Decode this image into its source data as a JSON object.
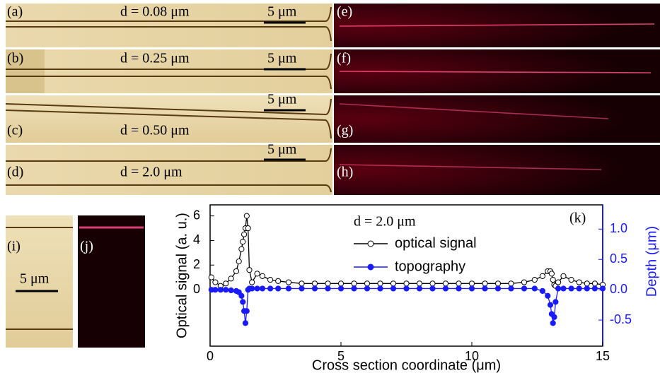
{
  "panels": [
    {
      "label": "(a)",
      "annotation": "d = 0.08 μm",
      "scale_bar": "5 μm"
    },
    {
      "label": "(b)",
      "annotation": "d = 0.25 μm",
      "scale_bar": "5 μm"
    },
    {
      "label": "(c)",
      "annotation": "d = 0.50 μm",
      "scale_bar": "5 μm"
    },
    {
      "label": "(d)",
      "annotation": "d = 2.0 μm",
      "scale_bar": "5 μm"
    },
    {
      "label": "(e)"
    },
    {
      "label": "(f)"
    },
    {
      "label": "(g)"
    },
    {
      "label": "(h)"
    },
    {
      "label": "(i)",
      "scale_bar": "5 μm"
    },
    {
      "label": "(j)"
    }
  ],
  "chart_data": {
    "type": "line",
    "panel_label": "(k)",
    "annotation": "d = 2.0 μm",
    "x_label": "Cross section coordinate (μm)",
    "y_label": "Optical signal (a. u.)",
    "y2_label": "Depth (μm)",
    "xlim": [
      0,
      15
    ],
    "xticks": [
      0,
      5,
      10,
      15
    ],
    "ylim": [
      -4.6,
      6.9
    ],
    "yticks": [
      0,
      2,
      4,
      6
    ],
    "y2lim": [
      -0.93,
      1.4
    ],
    "y2ticks": [
      {
        "value": 1.0,
        "label": "1.0"
      },
      0.5,
      {
        "value": 0.0,
        "label": "0.0"
      },
      -0.5
    ],
    "legend": "top-center",
    "x": [
      0.05,
      0.2,
      0.4,
      0.6,
      0.8,
      1.0,
      1.1,
      1.2,
      1.25,
      1.3,
      1.35,
      1.4,
      1.45,
      1.5,
      1.6,
      1.8,
      2.0,
      2.3,
      2.6,
      3,
      3.5,
      4,
      4.5,
      5,
      5.5,
      6,
      6.5,
      7,
      7.5,
      8,
      8.5,
      9,
      9.5,
      10,
      10.5,
      11,
      11.5,
      12,
      12.4,
      12.7,
      12.9,
      13.0,
      13.05,
      13.1,
      13.15,
      13.2,
      13.3,
      13.5,
      13.8,
      14.1,
      14.4,
      14.7,
      15.0
    ],
    "series": [
      {
        "name": "optical signal",
        "color": "#000000",
        "marker": "open",
        "values": [
          1.0,
          0.6,
          0.3,
          0.5,
          0.9,
          1.5,
          2.3,
          3.3,
          3.9,
          4.5,
          5.0,
          6.0,
          5.0,
          1.6,
          0.6,
          1.3,
          1.1,
          0.8,
          0.7,
          0.6,
          0.5,
          0.5,
          0.5,
          0.5,
          0.5,
          0.5,
          0.5,
          0.5,
          0.5,
          0.5,
          0.5,
          0.5,
          0.5,
          0.5,
          0.5,
          0.5,
          0.5,
          0.6,
          0.8,
          1.1,
          1.5,
          1.5,
          1.3,
          0.8,
          0.4,
          0.3,
          0.6,
          1.1,
          0.8,
          0.6,
          0.5,
          0.5,
          0.4
        ]
      },
      {
        "name": "topography",
        "color": "#1a1aff",
        "marker": "filled",
        "axis": "y2",
        "values": [
          0,
          0,
          0,
          0,
          -0.01,
          -0.02,
          -0.04,
          -0.1,
          -0.2,
          -0.35,
          -0.55,
          -0.35,
          0,
          0.02,
          0.02,
          0.02,
          0.02,
          0.02,
          0.02,
          0.02,
          0.02,
          0.02,
          0.02,
          0.02,
          0.02,
          0.02,
          0.02,
          0.02,
          0.02,
          0.02,
          0.02,
          0.02,
          0.02,
          0.02,
          0.02,
          0.02,
          0.02,
          0.02,
          0.02,
          -0.02,
          -0.1,
          -0.25,
          -0.4,
          -0.55,
          -0.45,
          -0.2,
          0.02,
          0.02,
          0.02,
          0.02,
          0.02,
          0.02,
          0.02
        ]
      }
    ]
  }
}
